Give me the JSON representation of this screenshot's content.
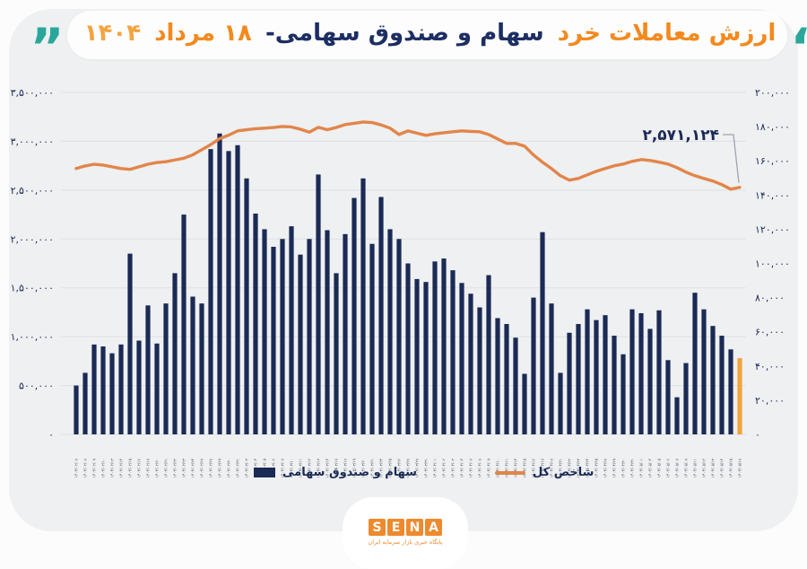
{
  "header": {
    "title_part1": "ارزش معاملات خرد",
    "title_part2": "سهام و صندوق سهامی-",
    "title_part3": "۱۸ مرداد",
    "title_part4": "۱۴۰۴",
    "accent_orange": "#f28a1f",
    "accent_navy": "#1c2e63",
    "quote_color": "#2aa79b"
  },
  "legend": {
    "bar_label": "سهام و صندوق سهامی",
    "line_label": "شاخص کل"
  },
  "footer": {
    "logo_letters": [
      "S",
      "E",
      "N",
      "A"
    ],
    "logo_color": "#ee8a2e",
    "caption": "پایگاه خبری بازار سرمایه ایران"
  },
  "chart_data": {
    "type": "bar",
    "subtype": "combo-bar-line",
    "grid": true,
    "legend_position": "bottom",
    "left_axis": {
      "min": 0,
      "max": 3500000,
      "labels": [
        "۳,۵۰۰,۰۰۰",
        "۳,۰۰۰,۰۰۰",
        "۲,۵۰۰,۰۰۰",
        "۲,۰۰۰,۰۰۰",
        "۱,۵۰۰,۰۰۰",
        "۱,۰۰۰,۰۰۰",
        "۵۰۰,۰۰۰",
        "۰"
      ]
    },
    "right_axis": {
      "min": 0,
      "max": 200000,
      "labels": [
        "۲۰۰,۰۰۰",
        "۱۸۰,۰۰۰",
        "۱۶۰,۰۰۰",
        "۱۴۰,۰۰۰",
        "۱۲۰,۰۰۰",
        "۱۰۰,۰۰۰",
        "۸۰,۰۰۰",
        "۶۰,۰۰۰",
        "۴۰,۰۰۰",
        "۲۰,۰۰۰",
        "۰"
      ]
    },
    "categories": [
      "۱۴۰۴/۰۲/۰۷",
      "۱۴۰۴/۰۲/۰۸",
      "۱۴۰۴/۰۲/۰۹",
      "۱۴۰۴/۰۲/۱۰",
      "۱۴۰۴/۰۲/۱۳",
      "۱۴۰۴/۰۲/۱۴",
      "۱۴۰۴/۰۲/۱۵",
      "۱۴۰۴/۰۲/۱۶",
      "۱۴۰۴/۰۲/۱۷",
      "۱۴۰۴/۰۲/۲۰",
      "۱۴۰۴/۰۲/۲۱",
      "۱۴۰۴/۰۲/۲۲",
      "۱۴۰۴/۰۲/۲۳",
      "۱۴۰۴/۰۲/۲۴",
      "۱۴۰۴/۰۲/۲۷",
      "۱۴۰۴/۰۲/۲۸",
      "۱۴۰۴/۰۲/۲۹",
      "۱۴۰۴/۰۲/۳۰",
      "۱۴۰۴/۰۲/۳۱",
      "۱۴۰۴/۰۳/۰۳",
      "۱۴۰۴/۰۳/۰۴",
      "۱۴۰۴/۰۳/۰۵",
      "۱۴۰۴/۰۳/۰۶",
      "۱۴۰۴/۰۳/۰۷",
      "۱۴۰۴/۰۳/۱۰",
      "۱۴۰۴/۰۳/۱۱",
      "۱۴۰۴/۰۳/۱۲",
      "۱۴۰۴/۰۳/۱۳",
      "۱۴۰۴/۰۳/۱۴",
      "۱۴۰۴/۰۳/۱۷",
      "۱۴۰۴/۰۳/۱۸",
      "۱۴۰۴/۰۳/۱۹",
      "۱۴۰۴/۰۳/۲۰",
      "۱۴۰۴/۰۳/۲۱",
      "۱۴۰۴/۰۳/۲۴",
      "۱۴۰۴/۰۳/۲۵",
      "۱۴۰۴/۰۳/۲۶",
      "۱۴۰۴/۰۳/۲۷",
      "۱۴۰۴/۰۳/۲۸",
      "۱۴۰۴/۰۳/۳۱",
      "۱۴۰۴/۰۴/۰۱",
      "۱۴۰۴/۰۴/۰۲",
      "۱۴۰۴/۰۴/۰۳",
      "۱۴۰۴/۰۴/۰۴",
      "۱۴۰۴/۰۴/۰۷",
      "۱۴۰۴/۰۴/۰۸",
      "۱۴۰۴/۰۴/۰۹",
      "۱۴۰۴/۰۴/۱۰",
      "۱۴۰۴/۰۴/۱۱",
      "۱۴۰۴/۰۴/۱۴",
      "۱۴۰۴/۰۴/۱۵",
      "۱۴۰۴/۰۴/۱۶",
      "۱۴۰۴/۰۴/۱۷",
      "۱۴۰۴/۰۴/۱۸",
      "۱۴۰۴/۰۴/۲۱",
      "۱۴۰۴/۰۴/۲۲",
      "۱۴۰۴/۰۴/۲۳",
      "۱۴۰۴/۰۴/۲۴",
      "۱۴۰۴/۰۴/۲۵",
      "۱۴۰۴/۰۴/۲۸",
      "۱۴۰۴/۰۴/۲۹",
      "۱۴۰۴/۰۴/۳۰",
      "۱۴۰۴/۰۴/۳۱",
      "۱۴۰۴/۰۵/۰۱",
      "۱۴۰۴/۰۵/۰۴",
      "۱۴۰۴/۰۵/۰۵",
      "۱۴۰۴/۰۵/۰۶",
      "۱۴۰۴/۰۵/۰۷",
      "۱۴۰۴/۰۵/۰۸",
      "۱۴۰۴/۰۵/۱۱",
      "۱۴۰۴/۰۵/۱۲",
      "۱۴۰۴/۰۵/۱۳",
      "۱۴۰۴/۰۵/۱۴",
      "۱۴۰۴/۰۵/۱۵",
      "۱۴۰۴/۰۵/۱۸"
    ],
    "series": [
      {
        "name": "سهام و صندوق سهامی",
        "type": "bar",
        "axis": "left",
        "color": "#1b2a55",
        "highlight_index": 74,
        "highlight_color": "#f2a33c",
        "values": [
          500000,
          630000,
          920000,
          900000,
          830000,
          920000,
          1850000,
          960000,
          1320000,
          930000,
          1340000,
          1650000,
          2250000,
          1410000,
          1340000,
          2920000,
          3080000,
          2900000,
          2960000,
          2620000,
          2260000,
          2100000,
          1920000,
          2000000,
          2130000,
          1840000,
          2000000,
          2660000,
          2090000,
          1650000,
          2050000,
          2420000,
          2620000,
          1950000,
          2430000,
          2100000,
          2000000,
          1750000,
          1590000,
          1560000,
          1770000,
          1800000,
          1680000,
          1550000,
          1440000,
          1300000,
          1630000,
          1190000,
          1130000,
          990000,
          620000,
          1400000,
          2070000,
          1340000,
          630000,
          1040000,
          1130000,
          1280000,
          1170000,
          1220000,
          1010000,
          820000,
          1280000,
          1240000,
          1080000,
          1270000,
          760000,
          380000,
          730000,
          1450000,
          1280000,
          1110000,
          1010000,
          870000,
          780000
        ]
      },
      {
        "name": "شاخص کل",
        "type": "line",
        "axis": "right",
        "color": "#e2854a",
        "values": [
          155500,
          157000,
          158000,
          157500,
          156500,
          155500,
          155000,
          156500,
          158000,
          159000,
          159500,
          160500,
          161500,
          163500,
          166500,
          169500,
          173000,
          175000,
          177500,
          178200,
          178800,
          179100,
          179500,
          180100,
          179800,
          178500,
          176800,
          179600,
          178200,
          179500,
          181200,
          181900,
          182700,
          182400,
          181000,
          179100,
          175400,
          177500,
          176200,
          174900,
          175800,
          176400,
          177000,
          177500,
          177200,
          177000,
          175400,
          172800,
          170200,
          170200,
          168600,
          163400,
          159200,
          155500,
          151300,
          148700,
          149700,
          151800,
          153900,
          155500,
          157100,
          158100,
          159700,
          160700,
          160200,
          159200,
          158100,
          156000,
          153400,
          151300,
          149700,
          148200,
          146100,
          143400,
          144500
        ]
      }
    ],
    "annotation": {
      "text": "۲,۵۷۱,۱۲۴",
      "color": "#1b2a55",
      "callout_color": "#a0a4ad"
    }
  }
}
